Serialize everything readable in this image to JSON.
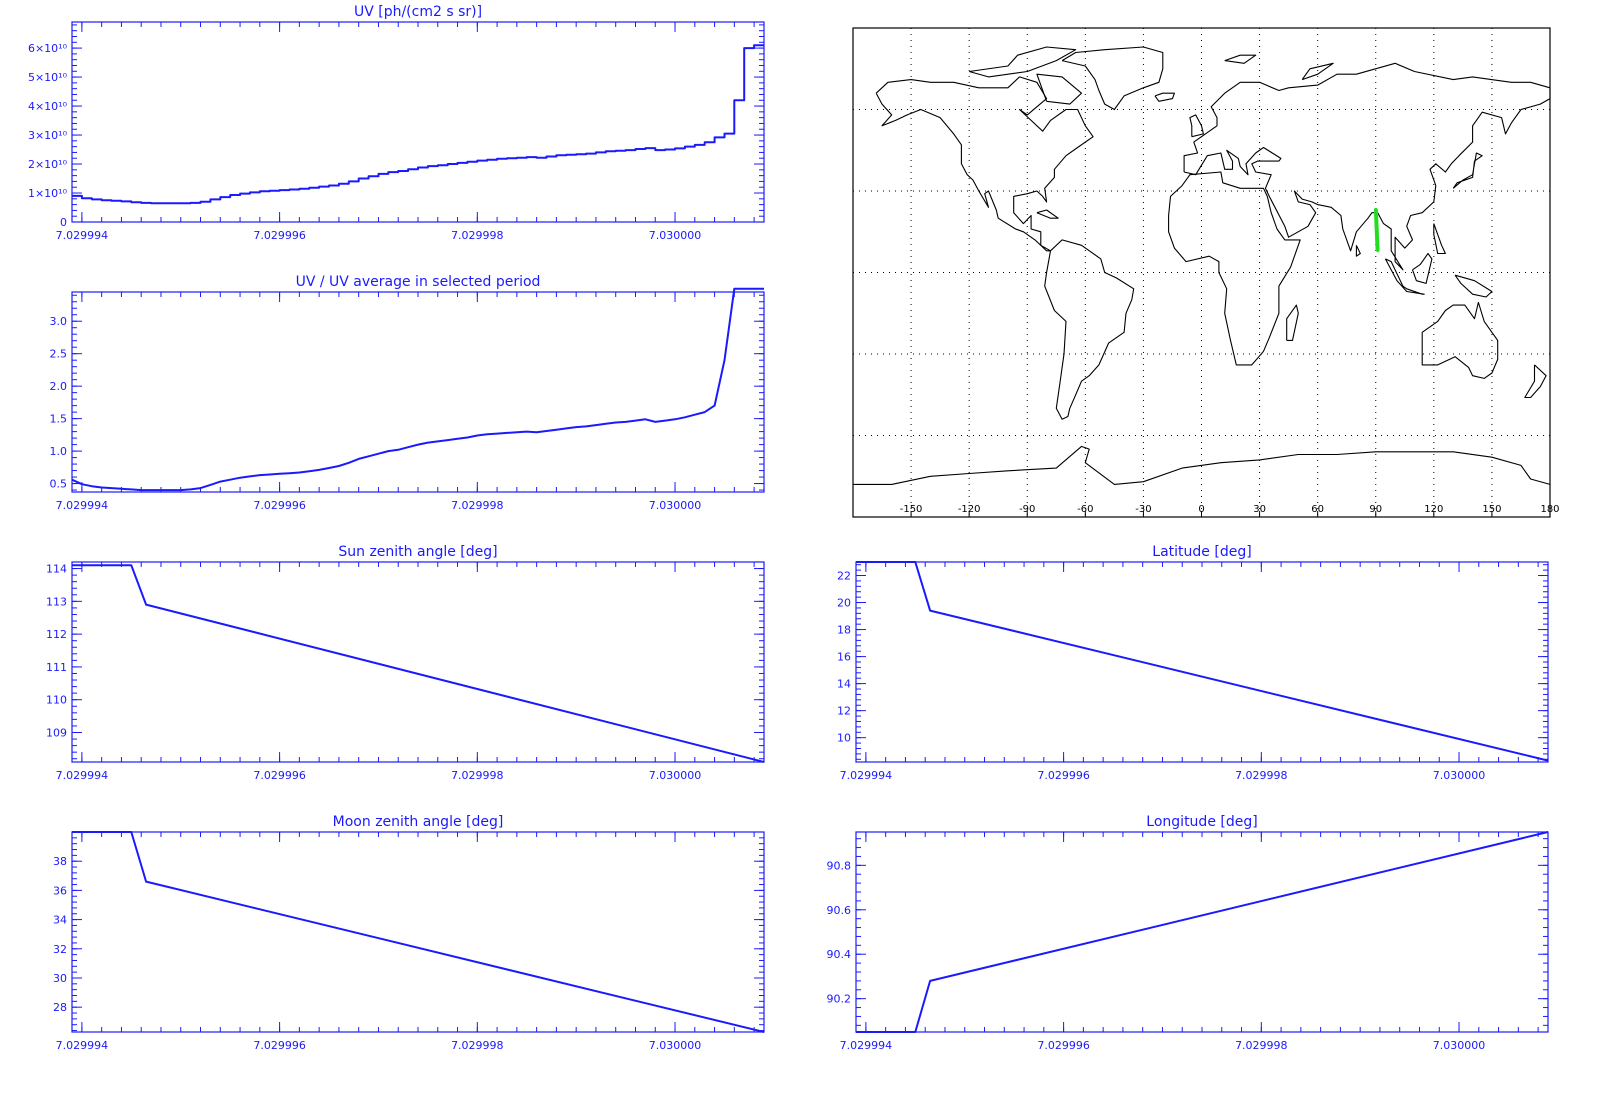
{
  "colors": {
    "line": "#1a1aff",
    "map_outline": "#000000",
    "map_grid": "#000000",
    "track": "#22dd22",
    "background": "#ffffff"
  },
  "chart_data": [
    {
      "id": "uv",
      "type": "line",
      "step": true,
      "title": "UV [ph/(cm2 s sr)]",
      "xlabel": "",
      "ylabel": "",
      "xlim": [
        7.0299939,
        7.0300009
      ],
      "ylim": [
        0,
        69000000000.0
      ],
      "x_ticks": [
        7.029994,
        7.029996,
        7.029998,
        7.03
      ],
      "x_tick_labels": [
        "7.029994",
        "7.029996",
        "7.029998",
        "7.030000"
      ],
      "y_ticks": [
        0,
        10000000000.0,
        20000000000.0,
        30000000000.0,
        40000000000.0,
        50000000000.0,
        60000000000.0
      ],
      "y_tick_labels": [
        "0",
        "1×10¹⁰",
        "2×10¹⁰",
        "3×10¹⁰",
        "4×10¹⁰",
        "5×10¹⁰",
        "6×10¹⁰"
      ],
      "series": [
        {
          "x": [
            7.0299939,
            7.029994,
            7.0299941,
            7.0299942,
            7.0299943,
            7.0299944,
            7.0299945,
            7.0299946,
            7.0299947,
            7.0299948,
            7.0299949,
            7.029995,
            7.0299951,
            7.0299952,
            7.0299953,
            7.0299954,
            7.0299955,
            7.0299956,
            7.0299957,
            7.0299958,
            7.0299959,
            7.029996,
            7.0299961,
            7.0299962,
            7.0299963,
            7.0299964,
            7.0299965,
            7.0299966,
            7.0299967,
            7.0299968,
            7.0299969,
            7.029997,
            7.0299971,
            7.0299972,
            7.0299973,
            7.0299974,
            7.0299975,
            7.0299976,
            7.0299977,
            7.0299978,
            7.0299979,
            7.029998,
            7.0299981,
            7.0299982,
            7.0299983,
            7.0299984,
            7.0299985,
            7.0299986,
            7.0299987,
            7.0299988,
            7.0299989,
            7.029999,
            7.0299991,
            7.0299992,
            7.0299993,
            7.0299994,
            7.0299995,
            7.0299996,
            7.0299997,
            7.0299998,
            7.0299999,
            7.03,
            7.0300001,
            7.0300002,
            7.0300003,
            7.0300004,
            7.0300005,
            7.0300006,
            7.0300007,
            7.0300008,
            7.0300009
          ],
          "values": [
            9000000000.0,
            8200000000.0,
            7800000000.0,
            7500000000.0,
            7300000000.0,
            7100000000.0,
            6800000000.0,
            6600000000.0,
            6500000000.0,
            6500000000.0,
            6500000000.0,
            6500000000.0,
            6600000000.0,
            7000000000.0,
            7800000000.0,
            8600000000.0,
            9300000000.0,
            9800000000.0,
            10200000000.0,
            10600000000.0,
            10800000000.0,
            11000000000.0,
            11200000000.0,
            11500000000.0,
            11800000000.0,
            12200000000.0,
            12600000000.0,
            13200000000.0,
            14000000000.0,
            15000000000.0,
            15800000000.0,
            16600000000.0,
            17200000000.0,
            17600000000.0,
            18200000000.0,
            18800000000.0,
            19300000000.0,
            19600000000.0,
            20000000000.0,
            20400000000.0,
            20800000000.0,
            21200000000.0,
            21500000000.0,
            21800000000.0,
            22000000000.0,
            22200000000.0,
            22400000000.0,
            22200000000.0,
            22600000000.0,
            23000000000.0,
            23200000000.0,
            23400000000.0,
            23600000000.0,
            24000000000.0,
            24400000000.0,
            24600000000.0,
            24800000000.0,
            25200000000.0,
            25500000000.0,
            24800000000.0,
            25000000000.0,
            25400000000.0,
            26000000000.0,
            26600000000.0,
            27500000000.0,
            29200000000.0,
            30500000000.0,
            42000000000.0,
            60000000000.0,
            61000000000.0,
            61000000000.0
          ]
        }
      ]
    },
    {
      "id": "uv_ratio",
      "type": "line",
      "title": "UV / UV average in selected period",
      "xlabel": "",
      "ylabel": "",
      "xlim": [
        7.0299939,
        7.0300009
      ],
      "ylim": [
        0.37,
        3.45
      ],
      "x_ticks": [
        7.029994,
        7.029996,
        7.029998,
        7.03
      ],
      "x_tick_labels": [
        "7.029994",
        "7.029996",
        "7.029998",
        "7.030000"
      ],
      "y_ticks": [
        0.5,
        1.0,
        1.5,
        2.0,
        2.5,
        3.0
      ],
      "y_tick_labels": [
        "0.5",
        "1.0",
        "1.5",
        "2.0",
        "2.5",
        "3.0"
      ],
      "series": [
        {
          "x": [
            7.0299939,
            7.029994,
            7.0299941,
            7.0299942,
            7.0299943,
            7.0299944,
            7.0299945,
            7.0299946,
            7.0299947,
            7.0299948,
            7.0299949,
            7.029995,
            7.0299951,
            7.0299952,
            7.0299953,
            7.0299954,
            7.0299955,
            7.0299956,
            7.0299957,
            7.0299958,
            7.0299959,
            7.029996,
            7.0299961,
            7.0299962,
            7.0299963,
            7.0299964,
            7.0299965,
            7.0299966,
            7.0299967,
            7.0299968,
            7.0299969,
            7.029997,
            7.0299971,
            7.0299972,
            7.0299973,
            7.0299974,
            7.0299975,
            7.0299976,
            7.0299977,
            7.0299978,
            7.0299979,
            7.029998,
            7.0299981,
            7.0299982,
            7.0299983,
            7.0299984,
            7.0299985,
            7.0299986,
            7.0299987,
            7.0299988,
            7.0299989,
            7.029999,
            7.0299991,
            7.0299992,
            7.0299993,
            7.0299994,
            7.0299995,
            7.0299996,
            7.0299997,
            7.0299998,
            7.0299999,
            7.03,
            7.0300001,
            7.0300002,
            7.0300003,
            7.0300004,
            7.0300005,
            7.0300006,
            7.0300007,
            7.0300008,
            7.0300009
          ],
          "values": [
            0.56,
            0.49,
            0.46,
            0.44,
            0.43,
            0.42,
            0.41,
            0.4,
            0.4,
            0.4,
            0.4,
            0.4,
            0.41,
            0.43,
            0.48,
            0.53,
            0.56,
            0.59,
            0.61,
            0.63,
            0.64,
            0.65,
            0.66,
            0.67,
            0.69,
            0.71,
            0.74,
            0.77,
            0.82,
            0.88,
            0.92,
            0.96,
            1.0,
            1.02,
            1.06,
            1.1,
            1.13,
            1.15,
            1.17,
            1.19,
            1.21,
            1.24,
            1.26,
            1.27,
            1.28,
            1.29,
            1.3,
            1.29,
            1.31,
            1.33,
            1.35,
            1.37,
            1.38,
            1.4,
            1.42,
            1.44,
            1.45,
            1.47,
            1.49,
            1.45,
            1.47,
            1.49,
            1.52,
            1.56,
            1.6,
            1.7,
            2.4,
            3.5,
            3.5,
            3.5,
            3.5
          ]
        }
      ]
    },
    {
      "id": "sun_zenith",
      "type": "line",
      "title": "Sun zenith angle [deg]",
      "xlabel": "",
      "ylabel": "",
      "xlim": [
        7.0299939,
        7.0300009
      ],
      "ylim": [
        108.1,
        114.2
      ],
      "x_ticks": [
        7.029994,
        7.029996,
        7.029998,
        7.03
      ],
      "x_tick_labels": [
        "7.029994",
        "7.029996",
        "7.029998",
        "7.030000"
      ],
      "y_ticks": [
        109,
        110,
        111,
        112,
        113,
        114
      ],
      "y_tick_labels": [
        "109",
        "110",
        "111",
        "112",
        "113",
        "114"
      ],
      "series": [
        {
          "x": [
            7.0299939,
            7.0299945,
            7.02999465,
            7.0300009
          ],
          "values": [
            114.1,
            114.1,
            112.9,
            108.1
          ]
        }
      ]
    },
    {
      "id": "latitude",
      "type": "line",
      "title": "Latitude [deg]",
      "xlabel": "",
      "ylabel": "",
      "xlim": [
        7.0299939,
        7.0300009
      ],
      "ylim": [
        8.2,
        23
      ],
      "x_ticks": [
        7.029994,
        7.029996,
        7.029998,
        7.03
      ],
      "x_tick_labels": [
        "7.029994",
        "7.029996",
        "7.029998",
        "7.030000"
      ],
      "y_ticks": [
        10,
        12,
        14,
        16,
        18,
        20,
        22
      ],
      "y_tick_labels": [
        "10",
        "12",
        "14",
        "16",
        "18",
        "20",
        "22"
      ],
      "series": [
        {
          "x": [
            7.0299939,
            7.0299945,
            7.02999465,
            7.0300009
          ],
          "values": [
            23,
            23,
            19.4,
            8.3
          ]
        }
      ]
    },
    {
      "id": "moon_zenith",
      "type": "line",
      "title": "Moon zenith angle [deg]",
      "xlabel": "",
      "ylabel": "",
      "xlim": [
        7.0299939,
        7.0300009
      ],
      "ylim": [
        26.3,
        40
      ],
      "x_ticks": [
        7.029994,
        7.029996,
        7.029998,
        7.03
      ],
      "x_tick_labels": [
        "7.029994",
        "7.029996",
        "7.029998",
        "7.030000"
      ],
      "y_ticks": [
        28,
        30,
        32,
        34,
        36,
        38
      ],
      "y_tick_labels": [
        "28",
        "30",
        "32",
        "34",
        "36",
        "38"
      ],
      "series": [
        {
          "x": [
            7.0299939,
            7.0299945,
            7.02999465,
            7.0300009
          ],
          "values": [
            40,
            40,
            36.6,
            26.3
          ]
        }
      ]
    },
    {
      "id": "longitude",
      "type": "line",
      "title": "Longitude [deg]",
      "xlabel": "",
      "ylabel": "",
      "xlim": [
        7.0299939,
        7.0300009
      ],
      "ylim": [
        90.05,
        90.95
      ],
      "x_ticks": [
        7.029994,
        7.029996,
        7.029998,
        7.03
      ],
      "x_tick_labels": [
        "7.029994",
        "7.029996",
        "7.029998",
        "7.030000"
      ],
      "y_ticks": [
        90.2,
        90.4,
        90.6,
        90.8
      ],
      "y_tick_labels": [
        "90.2",
        "90.4",
        "90.6",
        "90.8"
      ],
      "series": [
        {
          "x": [
            7.0299939,
            7.0299945,
            7.02999465,
            7.0300009
          ],
          "values": [
            90.05,
            90.05,
            90.28,
            90.95
          ]
        }
      ]
    }
  ],
  "map": {
    "x_tick_labels": [
      "-150",
      "-120",
      "-90",
      "-60",
      "-30",
      "0",
      "30",
      "60",
      "90",
      "120",
      "150",
      "180"
    ],
    "x_tick_values": [
      -150,
      -120,
      -90,
      -60,
      -30,
      0,
      30,
      60,
      90,
      120,
      150,
      180
    ],
    "grid_lons": [
      -150,
      -120,
      -90,
      -60,
      -30,
      0,
      30,
      60,
      90,
      120,
      150
    ],
    "grid_lats": [
      -60,
      -30,
      0,
      30,
      60
    ],
    "lon_range": [
      -180,
      180
    ],
    "lat_range": [
      -90,
      90
    ],
    "track": {
      "lon": [
        90.05,
        90.95
      ],
      "lat": [
        23,
        8.3
      ]
    }
  }
}
